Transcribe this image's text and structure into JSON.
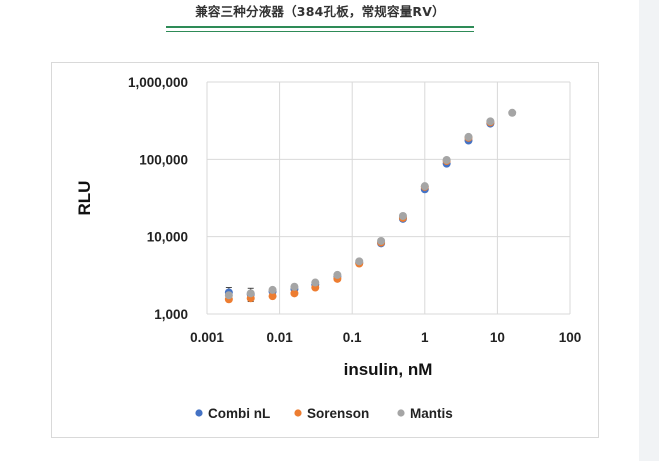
{
  "caption": "兼容三种分液器（384孔板，常规容量RV）",
  "colors": {
    "caption_rule": "#2e8b57",
    "grid": "#d9d9d9",
    "combi": "#4472c4",
    "sorenson": "#ed7d31",
    "mantis": "#a5a5a5"
  },
  "chart_data": {
    "type": "scatter",
    "title": "",
    "xlabel": "insulin, nM",
    "ylabel": "RLU",
    "xscale": "log",
    "yscale": "log",
    "xlim": [
      0.001,
      100
    ],
    "ylim": [
      1000,
      1000000
    ],
    "x_ticks": [
      "0.001",
      "0.01",
      "0.1",
      "1",
      "10",
      "100"
    ],
    "y_ticks": [
      "1,000",
      "10,000",
      "100,000",
      "1,000,000"
    ],
    "grid": true,
    "legend_position": "bottom",
    "series": [
      {
        "name": "Combi nL",
        "color": "#4472c4",
        "points": [
          [
            0.002,
            1900
          ],
          [
            0.004,
            1800
          ],
          [
            0.008,
            1950
          ],
          [
            0.016,
            2100
          ],
          [
            0.031,
            2400
          ],
          [
            0.0625,
            3050
          ],
          [
            0.125,
            4600
          ],
          [
            0.25,
            8200
          ],
          [
            0.5,
            17000
          ],
          [
            1,
            41000
          ],
          [
            2,
            88000
          ],
          [
            4,
            175000
          ],
          [
            8,
            290000
          ]
        ]
      },
      {
        "name": "Sorenson",
        "color": "#ed7d31",
        "points": [
          [
            0.002,
            1550
          ],
          [
            0.004,
            1600
          ],
          [
            0.008,
            1700
          ],
          [
            0.016,
            1850
          ],
          [
            0.031,
            2200
          ],
          [
            0.0625,
            2850
          ],
          [
            0.125,
            4500
          ],
          [
            0.25,
            8400
          ],
          [
            0.5,
            17500
          ],
          [
            1,
            44000
          ],
          [
            2,
            95000
          ],
          [
            4,
            190000
          ],
          [
            8,
            300000
          ]
        ]
      },
      {
        "name": "Mantis",
        "color": "#a5a5a5",
        "points": [
          [
            0.002,
            1750
          ],
          [
            0.004,
            1850
          ],
          [
            0.008,
            2050
          ],
          [
            0.016,
            2250
          ],
          [
            0.031,
            2550
          ],
          [
            0.0625,
            3200
          ],
          [
            0.125,
            4800
          ],
          [
            0.25,
            8800
          ],
          [
            0.5,
            18500
          ],
          [
            1,
            45000
          ],
          [
            2,
            98000
          ],
          [
            4,
            195000
          ],
          [
            8,
            310000
          ],
          [
            16,
            400000
          ]
        ]
      }
    ]
  }
}
